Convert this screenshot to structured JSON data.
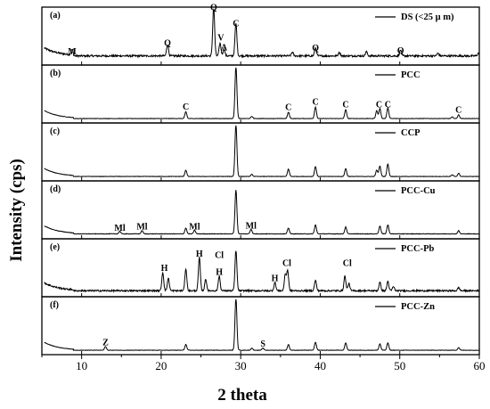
{
  "chart_data": {
    "type": "line",
    "xlabel": "2 theta",
    "ylabel": "Intensity (cps)",
    "xlim": [
      5,
      60
    ],
    "xticks": [
      10,
      20,
      30,
      40,
      50,
      60
    ],
    "grid": false,
    "legend_position": "top-right of each panel",
    "panels": [
      {
        "label": "(a)",
        "legend": "DS (<25 μ m)",
        "baseline": 0.14,
        "noise": 0.035,
        "peaks": [
          {
            "x": 8.8,
            "h": 0.1
          },
          {
            "x": 20.8,
            "h": 0.22
          },
          {
            "x": 26.6,
            "h": 0.93
          },
          {
            "x": 27.4,
            "h": 0.24
          },
          {
            "x": 27.9,
            "h": 0.13
          },
          {
            "x": 29.4,
            "h": 0.62
          },
          {
            "x": 36.5,
            "h": 0.07
          },
          {
            "x": 39.4,
            "h": 0.15
          },
          {
            "x": 42.4,
            "h": 0.07
          },
          {
            "x": 45.8,
            "h": 0.08
          },
          {
            "x": 50.1,
            "h": 0.11
          },
          {
            "x": 54.8,
            "h": 0.05
          },
          {
            "x": 59.9,
            "h": 0.05
          }
        ],
        "annotations": [
          {
            "text": "M",
            "x": 8.8,
            "y": 0.17
          },
          {
            "text": "Q",
            "x": 20.8,
            "y": 0.33
          },
          {
            "text": "Q",
            "x": 26.6,
            "y": 1.01
          },
          {
            "text": "V",
            "x": 27.5,
            "y": 0.43
          },
          {
            "text": "A",
            "x": 27.9,
            "y": 0.25
          },
          {
            "text": "C",
            "x": 29.4,
            "y": 0.7
          },
          {
            "text": "Q",
            "x": 39.4,
            "y": 0.24
          },
          {
            "text": "Q",
            "x": 50.1,
            "y": 0.19
          }
        ]
      },
      {
        "label": "(b)",
        "legend": "PCC",
        "baseline": 0.05,
        "noise": 0.008,
        "peaks": [
          {
            "x": 23.1,
            "h": 0.13
          },
          {
            "x": 29.4,
            "h": 1.0
          },
          {
            "x": 31.4,
            "h": 0.04
          },
          {
            "x": 36.0,
            "h": 0.12
          },
          {
            "x": 39.4,
            "h": 0.22
          },
          {
            "x": 43.2,
            "h": 0.17
          },
          {
            "x": 47.1,
            "h": 0.15
          },
          {
            "x": 47.5,
            "h": 0.19
          },
          {
            "x": 48.5,
            "h": 0.2
          },
          {
            "x": 57.4,
            "h": 0.07
          },
          {
            "x": 56.6,
            "h": 0.03
          }
        ],
        "annotations": [
          {
            "text": "C",
            "x": 23.1,
            "y": 0.22
          },
          {
            "text": "C",
            "x": 36.0,
            "y": 0.21
          },
          {
            "text": "C",
            "x": 39.4,
            "y": 0.31
          },
          {
            "text": "C",
            "x": 43.2,
            "y": 0.26
          },
          {
            "text": "C",
            "x": 47.4,
            "y": 0.26
          },
          {
            "text": "C",
            "x": 48.5,
            "y": 0.26
          },
          {
            "text": "C",
            "x": 57.4,
            "y": 0.16
          }
        ]
      },
      {
        "label": "(c)",
        "legend": "CCP",
        "baseline": 0.05,
        "noise": 0.008,
        "peaks": [
          {
            "x": 23.1,
            "h": 0.12
          },
          {
            "x": 29.4,
            "h": 1.0
          },
          {
            "x": 31.4,
            "h": 0.04
          },
          {
            "x": 36.0,
            "h": 0.14
          },
          {
            "x": 39.4,
            "h": 0.19
          },
          {
            "x": 43.2,
            "h": 0.15
          },
          {
            "x": 47.1,
            "h": 0.12
          },
          {
            "x": 47.5,
            "h": 0.2
          },
          {
            "x": 48.5,
            "h": 0.24
          },
          {
            "x": 57.4,
            "h": 0.06
          },
          {
            "x": 56.6,
            "h": 0.03
          }
        ],
        "annotations": []
      },
      {
        "label": "(d)",
        "legend": "PCC-Cu",
        "baseline": 0.06,
        "noise": 0.01,
        "peaks": [
          {
            "x": 14.8,
            "h": 0.05
          },
          {
            "x": 17.6,
            "h": 0.06
          },
          {
            "x": 23.1,
            "h": 0.11
          },
          {
            "x": 24.2,
            "h": 0.07
          },
          {
            "x": 29.4,
            "h": 0.84
          },
          {
            "x": 31.3,
            "h": 0.09
          },
          {
            "x": 36.0,
            "h": 0.11
          },
          {
            "x": 39.4,
            "h": 0.17
          },
          {
            "x": 43.2,
            "h": 0.13
          },
          {
            "x": 47.5,
            "h": 0.15
          },
          {
            "x": 48.5,
            "h": 0.17
          },
          {
            "x": 57.4,
            "h": 0.06
          }
        ],
        "annotations": [
          {
            "text": "Ml",
            "x": 14.8,
            "y": 0.12
          },
          {
            "text": "Ml",
            "x": 17.6,
            "y": 0.14
          },
          {
            "text": "Ml",
            "x": 24.2,
            "y": 0.14
          },
          {
            "text": "Ml",
            "x": 31.3,
            "y": 0.16
          }
        ]
      },
      {
        "label": "(e)",
        "legend": "PCC-Pb",
        "baseline": 0.08,
        "noise": 0.03,
        "peaks": [
          {
            "x": 20.2,
            "h": 0.35
          },
          {
            "x": 20.9,
            "h": 0.24
          },
          {
            "x": 23.1,
            "h": 0.42
          },
          {
            "x": 24.8,
            "h": 0.63
          },
          {
            "x": 25.6,
            "h": 0.22
          },
          {
            "x": 27.3,
            "h": 0.28
          },
          {
            "x": 29.4,
            "h": 0.77
          },
          {
            "x": 34.3,
            "h": 0.16
          },
          {
            "x": 35.6,
            "h": 0.3
          },
          {
            "x": 35.9,
            "h": 0.38
          },
          {
            "x": 39.4,
            "h": 0.2
          },
          {
            "x": 43.1,
            "h": 0.28
          },
          {
            "x": 43.6,
            "h": 0.14
          },
          {
            "x": 47.5,
            "h": 0.16
          },
          {
            "x": 48.5,
            "h": 0.18
          },
          {
            "x": 49.2,
            "h": 0.08
          },
          {
            "x": 57.4,
            "h": 0.06
          }
        ],
        "annotations": [
          {
            "text": "H",
            "x": 20.4,
            "y": 0.46
          },
          {
            "text": "H",
            "x": 24.8,
            "y": 0.73
          },
          {
            "text": "Cl",
            "x": 27.3,
            "y": 0.7
          },
          {
            "text": "H",
            "x": 27.3,
            "y": 0.38
          },
          {
            "text": "H",
            "x": 34.3,
            "y": 0.26
          },
          {
            "text": "Cl",
            "x": 35.8,
            "y": 0.55
          },
          {
            "text": "Cl",
            "x": 43.4,
            "y": 0.55
          }
        ]
      },
      {
        "label": "(f)",
        "legend": "PCC-Zn",
        "baseline": 0.05,
        "noise": 0.008,
        "peaks": [
          {
            "x": 13.0,
            "h": 0.07
          },
          {
            "x": 23.1,
            "h": 0.11
          },
          {
            "x": 29.4,
            "h": 1.0
          },
          {
            "x": 31.4,
            "h": 0.04
          },
          {
            "x": 32.8,
            "h": 0.04
          },
          {
            "x": 36.0,
            "h": 0.11
          },
          {
            "x": 39.4,
            "h": 0.15
          },
          {
            "x": 43.2,
            "h": 0.14
          },
          {
            "x": 47.5,
            "h": 0.12
          },
          {
            "x": 48.5,
            "h": 0.14
          },
          {
            "x": 57.4,
            "h": 0.05
          }
        ],
        "annotations": [
          {
            "text": "Z",
            "x": 13.0,
            "y": 0.14
          },
          {
            "text": "S",
            "x": 32.8,
            "y": 0.12
          }
        ]
      }
    ]
  }
}
